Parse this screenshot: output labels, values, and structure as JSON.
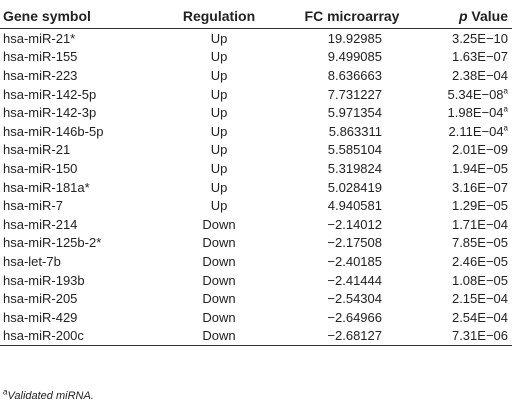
{
  "table": {
    "headers": {
      "gene_symbol": "Gene symbol",
      "regulation": "Regulation",
      "fc_microarray": "FC microarray",
      "p_value_p": "p",
      "p_value_rest": " Value"
    },
    "rows": [
      {
        "gene": "hsa-miR-21*",
        "regulation": "Up",
        "fc": "19.92985",
        "p": "3.25E−10",
        "mark": ""
      },
      {
        "gene": "hsa-miR-155",
        "regulation": "Up",
        "fc": "9.499085",
        "p": "1.63E−07",
        "mark": ""
      },
      {
        "gene": "hsa-miR-223",
        "regulation": "Up",
        "fc": "8.636663",
        "p": "2.38E−04",
        "mark": ""
      },
      {
        "gene": "hsa-miR-142-5p",
        "regulation": "Up",
        "fc": "7.731227",
        "p": "5.34E−08",
        "mark": "a"
      },
      {
        "gene": "hsa-miR-142-3p",
        "regulation": "Up",
        "fc": "5.971354",
        "p": "1.98E−04",
        "mark": "a"
      },
      {
        "gene": "hsa-miR-146b-5p",
        "regulation": "Up",
        "fc": "5.863311",
        "p": "2.11E−04",
        "mark": "a"
      },
      {
        "gene": "hsa-miR-21",
        "regulation": "Up",
        "fc": "5.585104",
        "p": "2.01E−09",
        "mark": ""
      },
      {
        "gene": "hsa-miR-150",
        "regulation": "Up",
        "fc": "5.319824",
        "p": "1.94E−05",
        "mark": ""
      },
      {
        "gene": "hsa-miR-181a*",
        "regulation": "Up",
        "fc": "5.028419",
        "p": "3.16E−07",
        "mark": ""
      },
      {
        "gene": "hsa-miR-7",
        "regulation": "Up",
        "fc": "4.940581",
        "p": "1.29E−05",
        "mark": ""
      },
      {
        "gene": "hsa-miR-214",
        "regulation": "Down",
        "fc": "−2.14012",
        "p": "1.71E−04",
        "mark": ""
      },
      {
        "gene": "hsa-miR-125b-2*",
        "regulation": "Down",
        "fc": "−2.17508",
        "p": "7.85E−05",
        "mark": ""
      },
      {
        "gene": "hsa-let-7b",
        "regulation": "Down",
        "fc": "−2.40185",
        "p": "2.46E−05",
        "mark": ""
      },
      {
        "gene": "hsa-miR-193b",
        "regulation": "Down",
        "fc": "−2.41444",
        "p": "1.08E−05",
        "mark": ""
      },
      {
        "gene": "hsa-miR-205",
        "regulation": "Down",
        "fc": "−2.54304",
        "p": "2.15E−04",
        "mark": ""
      },
      {
        "gene": "hsa-miR-429",
        "regulation": "Down",
        "fc": "−2.64966",
        "p": "2.54E−04",
        "mark": ""
      },
      {
        "gene": "hsa-miR-200c",
        "regulation": "Down",
        "fc": "−2.68127",
        "p": "7.31E−06",
        "mark": ""
      }
    ]
  },
  "footnote": {
    "mark": "a",
    "text": "Validated miRNA."
  }
}
